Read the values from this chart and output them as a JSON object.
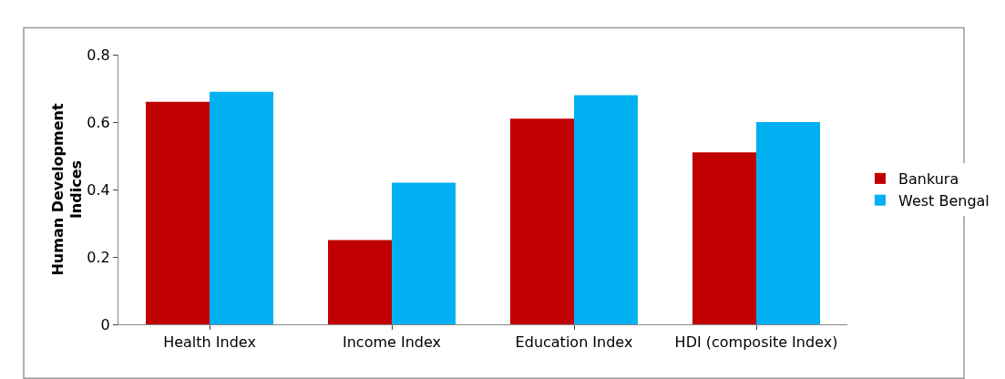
{
  "chart_data": {
    "type": "bar",
    "ylabel": "Human Development Indices",
    "categories": [
      "Health Index",
      "Income Index",
      "Education Index",
      "HDI (composite Index)"
    ],
    "series": [
      {
        "name": "Bankura",
        "color": "#c00000",
        "values": [
          0.66,
          0.25,
          0.61,
          0.51
        ]
      },
      {
        "name": "West Bengal",
        "color": "#00b0f0",
        "values": [
          0.69,
          0.42,
          0.68,
          0.6
        ]
      }
    ],
    "ylim": [
      0,
      0.8
    ],
    "yticks": [
      0,
      0.2,
      0.4,
      0.6,
      0.8
    ],
    "grid": false,
    "legend": "right"
  }
}
